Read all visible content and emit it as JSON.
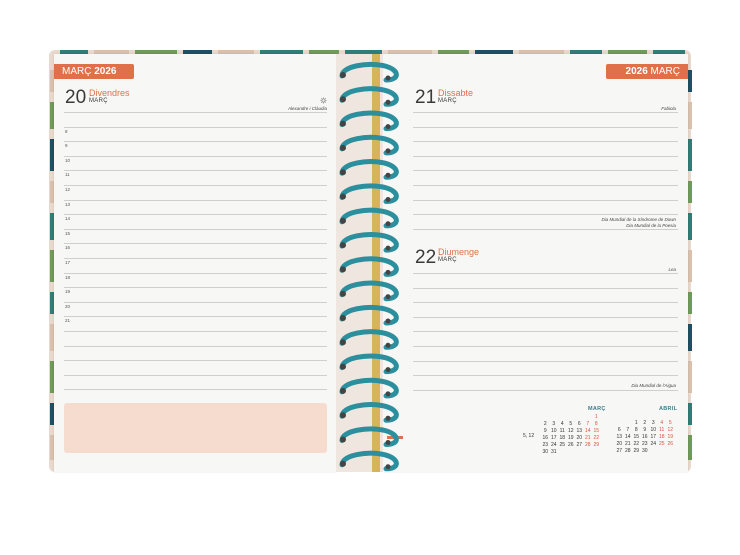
{
  "left_page": {
    "header_month": "MARÇ",
    "header_year": "2026",
    "day_number": "20",
    "day_name": "Divendres",
    "day_month": "MARÇ",
    "day_note": "Alexandre i Clàudia",
    "hours": [
      "8",
      "9",
      "10",
      "11",
      "12",
      "13",
      "14",
      "15",
      "16",
      "17",
      "18",
      "19",
      "20",
      "21"
    ]
  },
  "right_page": {
    "header_year": "2026",
    "header_month": "MARÇ",
    "day1": {
      "number": "21",
      "name": "Dissabte",
      "month": "MARÇ",
      "note": "Fabiola",
      "events": [
        "Dia Mundial de la Síndrome de Down",
        "Dia Mundial de la Poesia"
      ]
    },
    "day2": {
      "number": "22",
      "name": "Diumenge",
      "month": "MARÇ",
      "note": "Lea",
      "events": [
        "Dia Mundial de l'Aigua"
      ]
    },
    "mini_calendars": [
      {
        "title": "MARÇ",
        "rows": [
          [
            "",
            "",
            "",
            "",
            "",
            "",
            "1"
          ],
          [
            "2",
            "3",
            "4",
            "5",
            "6",
            "7",
            "8"
          ],
          [
            "9",
            "10",
            "11",
            "12",
            "13",
            "14",
            "15"
          ],
          [
            "16",
            "17",
            "18",
            "19",
            "20",
            "21",
            "22"
          ],
          [
            "23",
            "24",
            "25",
            "26",
            "27",
            "28",
            "29"
          ],
          [
            "30",
            "31",
            "",
            "",
            "",
            "",
            ""
          ]
        ],
        "week_label": "5, 12"
      },
      {
        "title": "ABRIL",
        "rows": [
          [
            "",
            "",
            "1",
            "2",
            "3",
            "4",
            "5"
          ],
          [
            "6",
            "7",
            "8",
            "9",
            "10",
            "11",
            "12"
          ],
          [
            "13",
            "14",
            "15",
            "16",
            "17",
            "18",
            "19"
          ],
          [
            "20",
            "21",
            "22",
            "23",
            "24",
            "25",
            "26"
          ],
          [
            "27",
            "28",
            "29",
            "30",
            "",
            "",
            ""
          ]
        ]
      }
    ]
  },
  "colors": {
    "accent": "#e0704a",
    "spiral": "#2b8f9e",
    "cover": "#e9d9cd",
    "stripe_teal": "#2f7d76",
    "stripe_green": "#6f9a5a",
    "stripe_navy": "#1e4f63",
    "stripe_sand": "#d9c1ad"
  },
  "icons": {
    "day_note_icon": "gear-icon"
  }
}
